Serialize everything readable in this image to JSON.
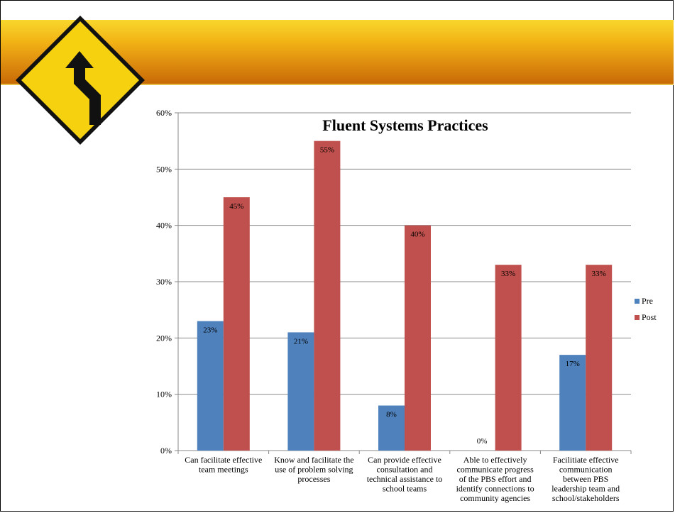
{
  "slide": {
    "icon": "winding-road-sign-icon",
    "banner_colors": [
      "#f8d72c",
      "#c86a06"
    ]
  },
  "chart_data": {
    "type": "bar",
    "title": "Fluent Systems Practices",
    "xlabel": "",
    "ylabel": "",
    "ylim": [
      0,
      60
    ],
    "y_ticks": [
      "0%",
      "10%",
      "20%",
      "30%",
      "40%",
      "50%",
      "60%"
    ],
    "grid": true,
    "legend_position": "right",
    "categories": [
      [
        "Can facilitate effective",
        "team meetings"
      ],
      [
        "Know and facilitate the",
        "use of problem solving",
        "processes"
      ],
      [
        "Can provide effective",
        "consultation and",
        "technical assistance to",
        "school teams"
      ],
      [
        "Able to effectively",
        "communicate progress",
        "of the PBS effort and",
        "identify connections to",
        "community agencies"
      ],
      [
        "Facilitiate effective",
        "communication",
        "between PBS",
        "leadership team and",
        "school/stakeholders"
      ]
    ],
    "series": [
      {
        "name": "Pre",
        "color": "#4f81bd",
        "values": [
          23,
          21,
          8,
          0,
          17
        ],
        "labels": [
          "23%",
          "21%",
          "8%",
          "0%",
          "17%"
        ]
      },
      {
        "name": "Post",
        "color": "#c0504d",
        "values": [
          45,
          55,
          40,
          33,
          33
        ],
        "labels": [
          "45%",
          "55%",
          "40%",
          "33%",
          "33%"
        ]
      }
    ]
  }
}
